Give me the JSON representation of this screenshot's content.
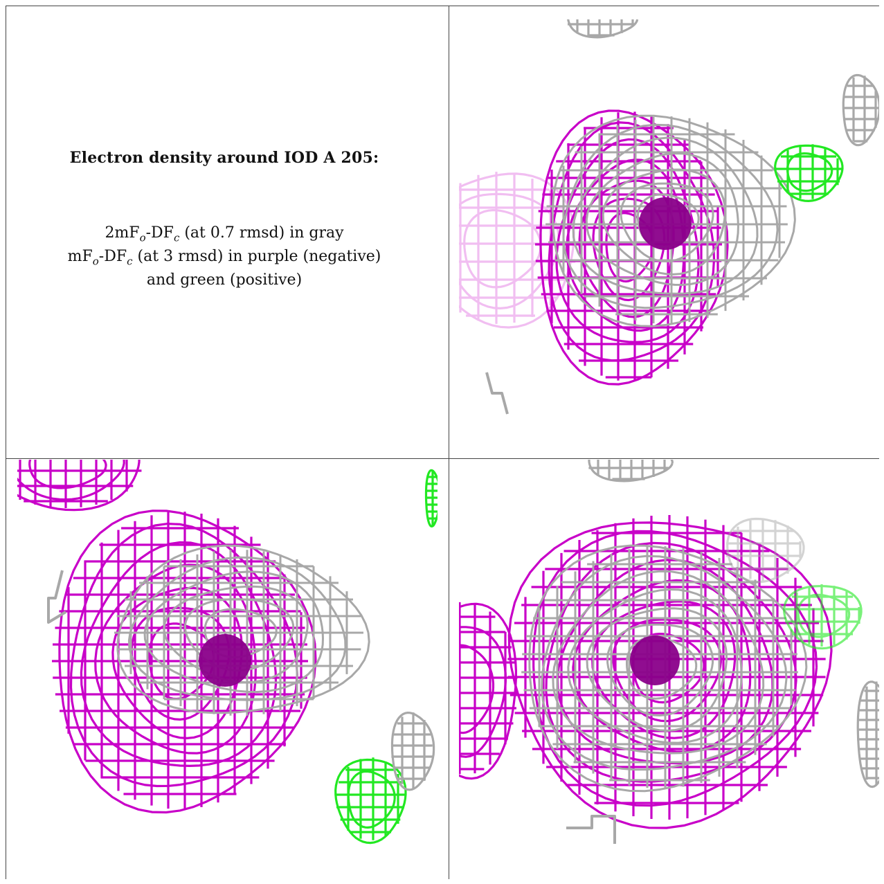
{
  "legend": {
    "title": "Electron density around IOD A 205:",
    "line1_a": "2mF",
    "line1_sub1": "o",
    "line1_b": "-DF",
    "line1_sub2": "c",
    "line1_c": " (at 0.7 rmsd) in gray",
    "line2_a": "mF",
    "line2_sub1": "o",
    "line2_b": "-DF",
    "line2_sub2": "c",
    "line2_c": " (at 3 rmsd) in purple (negative)",
    "line3": "and green (positive)"
  },
  "colors": {
    "negative": "#c800c8",
    "positive": "#22e822",
    "gray": "#a8a8a8",
    "atom": "#8a008a"
  }
}
